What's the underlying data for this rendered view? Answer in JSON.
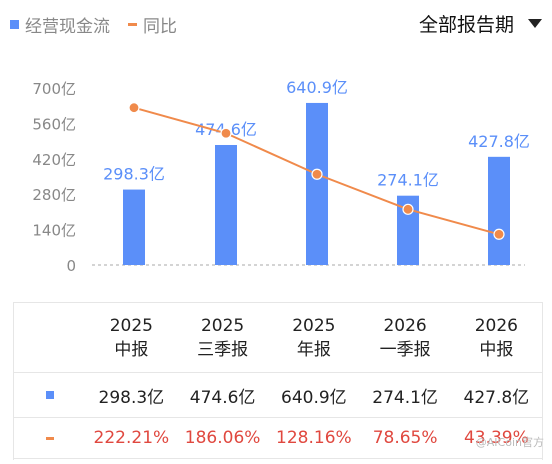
{
  "legend": {
    "bar_label": "经营现金流",
    "line_label": "同比"
  },
  "period_selector": {
    "label": "全部报告期"
  },
  "colors": {
    "bar": "#5b8ff9",
    "line": "#f08a4b",
    "negative_text": "#e0483f",
    "label_blue": "#5b8ff9"
  },
  "chart_data": {
    "type": "bar",
    "categories": [
      "2025中报",
      "2025三季报",
      "2025年报",
      "2026一季报",
      "2026中报"
    ],
    "series": [
      {
        "name": "经营现金流",
        "type": "bar",
        "values": [
          298.3,
          474.6,
          640.9,
          274.1,
          427.8
        ],
        "labels": [
          "298.3亿",
          "474.6亿",
          "640.9亿",
          "274.1亿",
          "427.8亿"
        ]
      },
      {
        "name": "同比",
        "type": "line",
        "values": [
          222.21,
          186.06,
          128.16,
          78.65,
          43.39
        ]
      }
    ],
    "y_ticks": [
      "700亿",
      "560亿",
      "420亿",
      "280亿",
      "140亿",
      "0"
    ],
    "ylim": [
      0,
      700
    ],
    "grid": false
  },
  "table": {
    "headers": [
      {
        "year": "2025",
        "period": "中报"
      },
      {
        "year": "2025",
        "period": "三季报"
      },
      {
        "year": "2025",
        "period": "年报"
      },
      {
        "year": "2026",
        "period": "一季报"
      },
      {
        "year": "2026",
        "period": "中报"
      }
    ],
    "cash_flow": [
      "298.3亿",
      "474.6亿",
      "640.9亿",
      "274.1亿",
      "427.8亿"
    ],
    "yoy": [
      "222.21%",
      "186.06%",
      "128.16%",
      "78.65%",
      "43.39%"
    ]
  },
  "watermark": "@AICoin官方"
}
